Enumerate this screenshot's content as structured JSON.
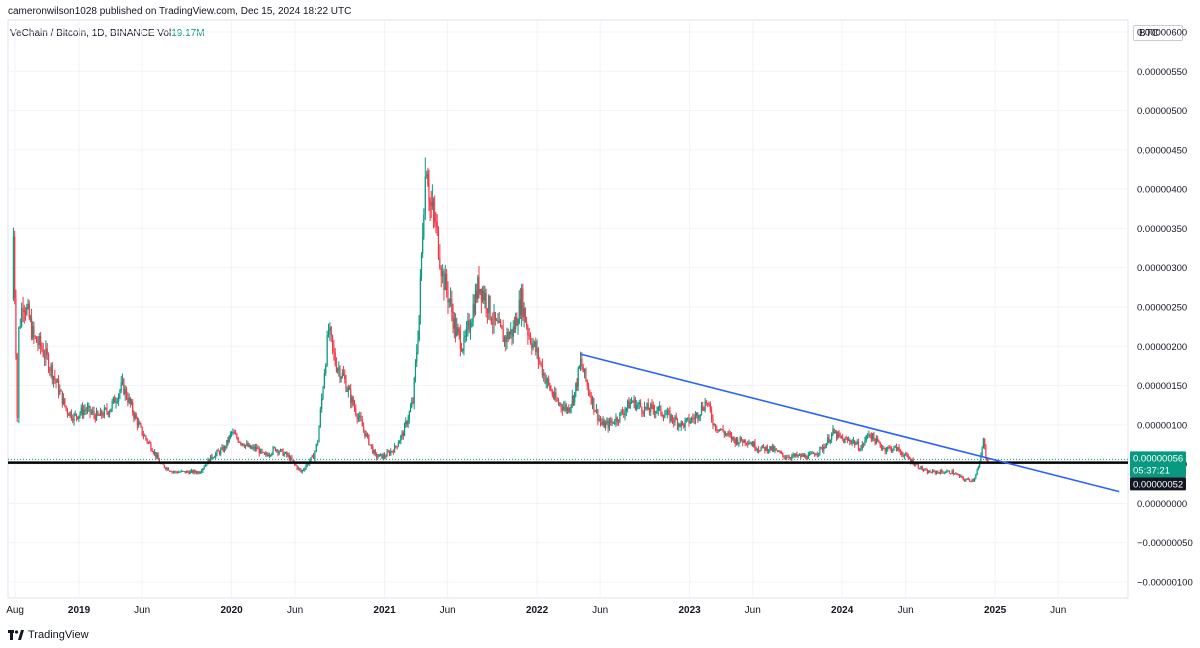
{
  "header": {
    "published": "cameronwilson1028 published on TradingView.com, Dec 15, 2024 18:22 UTC"
  },
  "symbol": {
    "label": "VeChain / Bitcoin, 1D, BINANCE",
    "vol_label": "Vol",
    "vol_value": "19.17M"
  },
  "currency": "BTC",
  "footer": {
    "brand": "TradingView",
    "logo_icon": "tradingview-logo-icon"
  },
  "colors": {
    "up": "#089981",
    "down": "#f23645",
    "trendline": "#2962ff",
    "support": "#000000",
    "price_badge": "#089981"
  },
  "price_badge": {
    "price": "0.00000056",
    "countdown": "05:37:21"
  },
  "support_badge": "0.00000052",
  "chart_data": {
    "type": "line",
    "title": "",
    "yaxis": {
      "ticks": [
        6e-06,
        5.5e-06,
        5e-06,
        4.5e-06,
        4e-06,
        3.5e-06,
        3e-06,
        2.5e-06,
        2e-06,
        1.5e-06,
        1e-06,
        5e-07,
        0,
        -5e-07,
        -1e-06
      ],
      "tick_labels": [
        "0.00000600",
        "0.00000550",
        "0.00000500",
        "0.00000450",
        "0.00000400",
        "0.00000350",
        "0.00000300",
        "0.00000250",
        "0.00000200",
        "0.00000150",
        "0.00000100",
        "0.00000050",
        "0.00000000",
        "−0.00000050",
        "−0.00000100"
      ],
      "ylim": [
        -1e-06,
        6e-06
      ]
    },
    "xaxis": {
      "ticks": [
        {
          "label": "Aug",
          "date": "2018-08-01"
        },
        {
          "label": "2019",
          "date": "2019-01-01"
        },
        {
          "label": "Jun",
          "date": "2019-06-01"
        },
        {
          "label": "2020",
          "date": "2020-01-01"
        },
        {
          "label": "Jun",
          "date": "2020-06-01"
        },
        {
          "label": "2021",
          "date": "2021-01-01"
        },
        {
          "label": "Jun",
          "date": "2021-06-01"
        },
        {
          "label": "2022",
          "date": "2022-01-01"
        },
        {
          "label": "Jun",
          "date": "2022-06-01"
        },
        {
          "label": "2023",
          "date": "2023-01-01"
        },
        {
          "label": "Jun",
          "date": "2023-06-01"
        },
        {
          "label": "2024",
          "date": "2024-01-01"
        },
        {
          "label": "Jun",
          "date": "2024-06-01"
        },
        {
          "label": "2025",
          "date": "2025-01-01"
        },
        {
          "label": "Jun",
          "date": "2025-06-01"
        }
      ],
      "xlim": [
        "2018-07-15",
        "2025-11-15"
      ]
    },
    "series": [
      {
        "points": [
          [
            "2018-07-24",
            2.6e-06
          ],
          [
            "2018-07-28",
            3.4e-06
          ],
          [
            "2018-08-03",
            2e-06
          ],
          [
            "2018-08-06",
            1.1e-06
          ],
          [
            "2018-08-10",
            2.2e-06
          ],
          [
            "2018-08-20",
            2.6e-06
          ],
          [
            "2018-09-01",
            2.4e-06
          ],
          [
            "2018-09-15",
            2.1e-06
          ],
          [
            "2018-10-01",
            2e-06
          ],
          [
            "2018-10-20",
            1.8e-06
          ],
          [
            "2018-11-10",
            1.5e-06
          ],
          [
            "2018-12-01",
            1.2e-06
          ],
          [
            "2018-12-20",
            1.1e-06
          ],
          [
            "2019-01-15",
            1.2e-06
          ],
          [
            "2019-02-15",
            1.1e-06
          ],
          [
            "2019-03-15",
            1.2e-06
          ],
          [
            "2019-04-15",
            1.5e-06
          ],
          [
            "2019-05-01",
            1.3e-06
          ],
          [
            "2019-05-15",
            1.1e-06
          ],
          [
            "2019-06-01",
            9e-07
          ],
          [
            "2019-06-25",
            7e-07
          ],
          [
            "2019-07-15",
            5e-07
          ],
          [
            "2019-08-15",
            4e-07
          ],
          [
            "2019-09-15",
            4e-07
          ],
          [
            "2019-10-15",
            4e-07
          ],
          [
            "2019-11-15",
            6e-07
          ],
          [
            "2019-12-15",
            7e-07
          ],
          [
            "2020-01-01",
            9e-07
          ],
          [
            "2020-01-20",
            8e-07
          ],
          [
            "2020-02-15",
            7e-07
          ],
          [
            "2020-03-01",
            7e-07
          ],
          [
            "2020-03-20",
            6e-07
          ],
          [
            "2020-04-15",
            7e-07
          ],
          [
            "2020-05-15",
            6e-07
          ],
          [
            "2020-06-15",
            4e-07
          ],
          [
            "2020-07-15",
            6e-07
          ],
          [
            "2020-07-25",
            8e-07
          ],
          [
            "2020-08-10",
            1.7e-06
          ],
          [
            "2020-08-20",
            2.2e-06
          ],
          [
            "2020-09-05",
            1.8e-06
          ],
          [
            "2020-09-25",
            1.6e-06
          ],
          [
            "2020-10-15",
            1.3e-06
          ],
          [
            "2020-11-15",
            9e-07
          ],
          [
            "2020-12-10",
            6e-07
          ],
          [
            "2021-01-01",
            6e-07
          ],
          [
            "2021-01-25",
            7e-07
          ],
          [
            "2021-02-15",
            9e-07
          ],
          [
            "2021-03-10",
            1.3e-06
          ],
          [
            "2021-03-25",
            2.4e-06
          ],
          [
            "2021-04-05",
            3.9e-06
          ],
          [
            "2021-04-12",
            4.4e-06
          ],
          [
            "2021-04-20",
            3.8e-06
          ],
          [
            "2021-05-01",
            3.6e-06
          ],
          [
            "2021-05-10",
            3.3e-06
          ],
          [
            "2021-05-20",
            2.9e-06
          ],
          [
            "2021-06-05",
            2.6e-06
          ],
          [
            "2021-06-20",
            2.2e-06
          ],
          [
            "2021-07-10",
            2e-06
          ],
          [
            "2021-08-01",
            2.5e-06
          ],
          [
            "2021-08-15",
            2.8e-06
          ],
          [
            "2021-09-01",
            2.6e-06
          ],
          [
            "2021-09-20",
            2.3e-06
          ],
          [
            "2021-10-15",
            2.1e-06
          ],
          [
            "2021-11-05",
            2.2e-06
          ],
          [
            "2021-11-25",
            2.6e-06
          ],
          [
            "2021-12-10",
            2.2e-06
          ],
          [
            "2022-01-01",
            1.9e-06
          ],
          [
            "2022-01-20",
            1.6e-06
          ],
          [
            "2022-02-15",
            1.3e-06
          ],
          [
            "2022-03-15",
            1.2e-06
          ],
          [
            "2022-04-01",
            1.4e-06
          ],
          [
            "2022-04-15",
            1.8e-06
          ],
          [
            "2022-05-01",
            1.5e-06
          ],
          [
            "2022-05-20",
            1.2e-06
          ],
          [
            "2022-06-05",
            1e-06
          ],
          [
            "2022-06-20",
            1e-06
          ],
          [
            "2022-07-15",
            1.1e-06
          ],
          [
            "2022-08-15",
            1.3e-06
          ],
          [
            "2022-09-15",
            1.2e-06
          ],
          [
            "2022-10-15",
            1.2e-06
          ],
          [
            "2022-11-15",
            1.1e-06
          ],
          [
            "2022-12-15",
            1e-06
          ],
          [
            "2023-01-15",
            1.1e-06
          ],
          [
            "2023-02-10",
            1.3e-06
          ],
          [
            "2023-03-01",
            1e-06
          ],
          [
            "2023-03-25",
            9e-07
          ],
          [
            "2023-04-20",
            8e-07
          ],
          [
            "2023-05-20",
            8e-07
          ],
          [
            "2023-06-15",
            7e-07
          ],
          [
            "2023-07-15",
            7e-07
          ],
          [
            "2023-08-15",
            6e-07
          ],
          [
            "2023-09-15",
            6e-07
          ],
          [
            "2023-10-15",
            6e-07
          ],
          [
            "2023-11-15",
            7e-07
          ],
          [
            "2023-12-10",
            9e-07
          ],
          [
            "2024-01-05",
            8e-07
          ],
          [
            "2024-01-25",
            8e-07
          ],
          [
            "2024-02-15",
            7e-07
          ],
          [
            "2024-03-05",
            9e-07
          ],
          [
            "2024-03-20",
            8e-07
          ],
          [
            "2024-04-10",
            7e-07
          ],
          [
            "2024-05-10",
            7e-07
          ],
          [
            "2024-06-01",
            6e-07
          ],
          [
            "2024-06-25",
            5e-07
          ],
          [
            "2024-07-20",
            4e-07
          ],
          [
            "2024-08-20",
            4e-07
          ],
          [
            "2024-09-20",
            4e-07
          ],
          [
            "2024-10-20",
            3e-07
          ],
          [
            "2024-11-10",
            3e-07
          ],
          [
            "2024-11-25",
            5e-07
          ],
          [
            "2024-12-04",
            8e-07
          ],
          [
            "2024-12-10",
            6e-07
          ],
          [
            "2024-12-15",
            5.6e-07
          ]
        ]
      }
    ],
    "trendline": {
      "start": [
        "2022-04-15",
        1.9e-06
      ],
      "end": [
        "2025-10-25",
        1.5e-07
      ]
    },
    "support_level": 5.2e-07,
    "grid": true
  }
}
